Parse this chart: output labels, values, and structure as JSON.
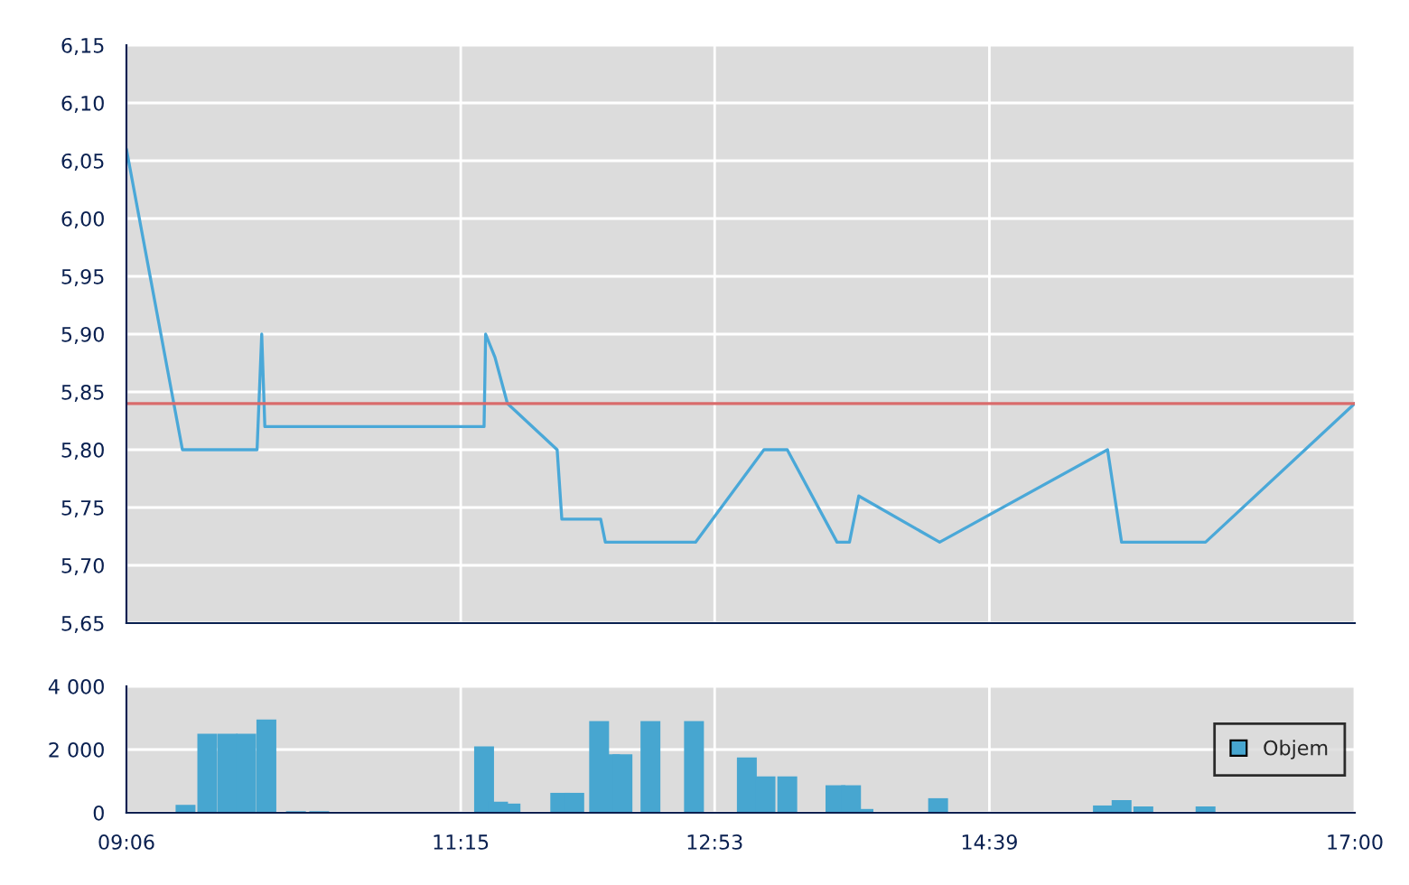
{
  "chart_data": [
    {
      "type": "line",
      "color": "#4aa8d8",
      "x": [
        9.1,
        9.46,
        9.94,
        9.97,
        9.99,
        11.4,
        11.41,
        11.47,
        11.55,
        11.87,
        11.9,
        12.15,
        12.18,
        12.76,
        13.2,
        13.35,
        13.67,
        13.75,
        13.81,
        14.33,
        15.41,
        15.5,
        16.04,
        17.0
      ],
      "values": [
        6.06,
        5.8,
        5.8,
        5.9,
        5.82,
        5.82,
        5.9,
        5.88,
        5.84,
        5.8,
        5.74,
        5.74,
        5.72,
        5.72,
        5.8,
        5.8,
        5.72,
        5.72,
        5.76,
        5.72,
        5.8,
        5.72,
        5.72,
        5.84
      ],
      "ref_lines": [
        {
          "axis": "y",
          "value": 5.84,
          "color": "#d96b6b"
        }
      ],
      "xlim": [
        9.1,
        17.0
      ],
      "xticks": [
        {
          "value": 9.1,
          "label": null
        },
        {
          "value": 11.25,
          "label": null
        },
        {
          "value": 12.883,
          "label": null
        },
        {
          "value": 14.65,
          "label": null
        },
        {
          "value": 17.0,
          "label": null
        }
      ],
      "ylim": [
        5.65,
        6.15
      ],
      "yticks": [
        {
          "value": 5.65,
          "label": "5,65"
        },
        {
          "value": 5.7,
          "label": "5,70"
        },
        {
          "value": 5.75,
          "label": "5,75"
        },
        {
          "value": 5.8,
          "label": "5,80"
        },
        {
          "value": 5.85,
          "label": "5,85"
        },
        {
          "value": 5.9,
          "label": "5,90"
        },
        {
          "value": 5.95,
          "label": "5,95"
        },
        {
          "value": 6.0,
          "label": "6,00"
        },
        {
          "value": 6.05,
          "label": "6,05"
        },
        {
          "value": 6.1,
          "label": "6,10"
        },
        {
          "value": 6.15,
          "label": "6,15"
        }
      ],
      "grid": true,
      "tick_labels": "y"
    },
    {
      "type": "bar",
      "x": [
        9.48,
        9.62,
        9.75,
        9.87,
        10.0,
        10.19,
        10.34,
        11.4,
        11.49,
        11.57,
        11.89,
        11.98,
        12.14,
        12.21,
        12.29,
        12.47,
        12.75,
        13.09,
        13.21,
        13.35,
        13.66,
        13.76,
        13.84,
        14.32,
        15.38,
        15.5,
        15.64,
        16.04
      ],
      "series": [
        {
          "name": "Objem",
          "color": "#47a6d0",
          "values": [
            250,
            2500,
            2500,
            2500,
            2950,
            50,
            50,
            2100,
            350,
            290,
            630,
            630,
            2900,
            1850,
            1850,
            2900,
            2900,
            1750,
            1150,
            1150,
            870,
            870,
            120,
            460,
            230,
            400,
            200,
            200
          ]
        }
      ],
      "xlim": [
        9.1,
        17.0
      ],
      "xticks": [
        {
          "value": 9.1,
          "label": "09:06"
        },
        {
          "value": 11.25,
          "label": "11:15"
        },
        {
          "value": 12.883,
          "label": "12:53"
        },
        {
          "value": 14.65,
          "label": "14:39"
        },
        {
          "value": 17.0,
          "label": "17:00"
        }
      ],
      "ylim": [
        0,
        4000
      ],
      "yticks": [
        0,
        {
          "value": 2000,
          "label": "2 000"
        },
        {
          "value": 4000,
          "label": "4 000"
        }
      ],
      "grid": true,
      "legend": "right"
    }
  ]
}
